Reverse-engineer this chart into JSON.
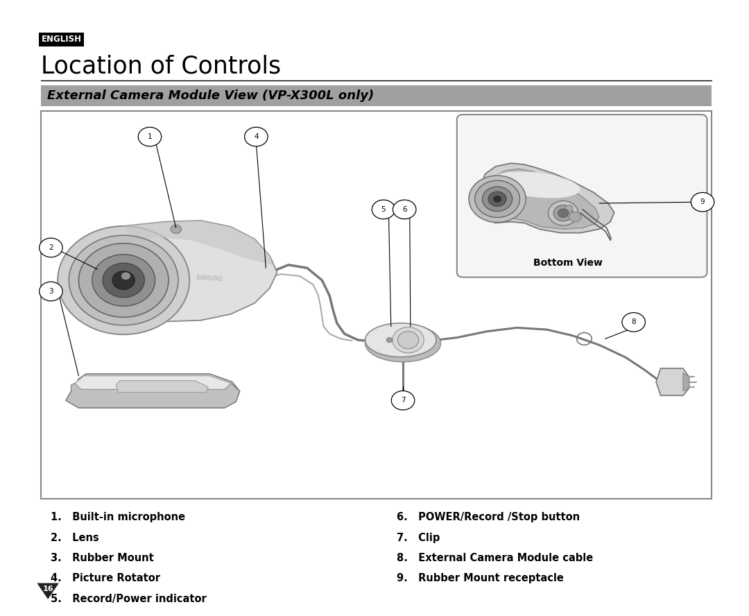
{
  "bg_color": "#ffffff",
  "english_label": "ENGLISH",
  "english_bg": "#000000",
  "english_text_color": "#ffffff",
  "title": "Location of Controls",
  "subtitle": "External Camera Module View (VP-X300L only)",
  "subtitle_bg": "#a0a0a0",
  "items_left": [
    "1.   Built-in microphone",
    "2.   Lens",
    "3.   Rubber Mount",
    "4.   Picture Rotator",
    "5.   Record/Power indicator"
  ],
  "items_right": [
    "6.   POWER/Record /Stop button",
    "7.   Clip",
    "8.   External Camera Module cable",
    "9.   Rubber Mount receptacle"
  ],
  "bottom_view_label": "Bottom View",
  "page_num": "16"
}
